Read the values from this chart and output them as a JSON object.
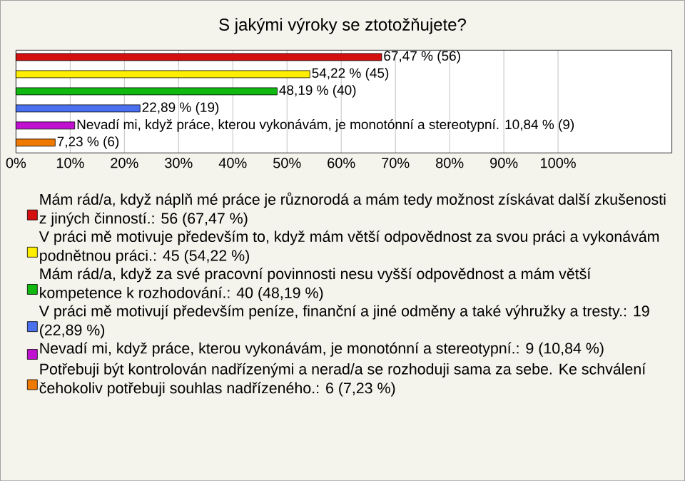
{
  "chart_data": {
    "type": "bar",
    "orientation": "horizontal",
    "title": "S jakými výroky se ztotožňujete?",
    "categories": [
      null,
      null,
      null,
      null,
      null,
      null
    ],
    "series": [
      {
        "name": "Mám rád/a, když náplň mé práce je různorodá a mám tedy možnost získávat další zkušenosti z jiných činností.: 56 (67,47 %)",
        "color": "#d41010",
        "values": [
          67.47,
          null,
          null,
          null,
          null,
          null
        ],
        "value_labels": [
          "67,47 % (56)",
          null,
          null,
          null,
          null,
          null
        ]
      },
      {
        "name": "V práci mě motivuje především to, když mám větší odpovědnost za svou práci a vykonávám podnětnou práci.: 45 (54,22 %)",
        "color": "#ffee00",
        "values": [
          null,
          54.22,
          null,
          null,
          null,
          null
        ],
        "value_labels": [
          null,
          "54,22 % (45)",
          null,
          null,
          null,
          null
        ]
      },
      {
        "name": "Mám rád/a, když za své pracovní povinnosti nesu vyšší odpovědnost a mám větší kompetence k rozhodování.: 40 (48,19 %)",
        "color": "#10b810",
        "values": [
          null,
          null,
          48.19,
          null,
          null,
          null
        ],
        "value_labels": [
          null,
          null,
          "48,19 % (40)",
          null,
          null,
          null
        ]
      },
      {
        "name": "V práci mě motivují především peníze, finanční a jiné odměny a také výhružky a tresty.: 19 (22,89 %)",
        "color": "#4a70f0",
        "values": [
          null,
          null,
          null,
          22.89,
          null,
          null
        ],
        "value_labels": [
          null,
          null,
          null,
          "22,89 % (19)",
          null,
          null
        ]
      },
      {
        "name": "Nevadí mi, když práce, kterou vykonávám, je monotónní a stereotypní.: 9 (10,84 %)",
        "color": "#c010d0",
        "values": [
          null,
          null,
          null,
          null,
          10.84,
          null
        ],
        "value_labels": [
          null,
          null,
          null,
          null,
          "Nevadí mi, když práce, kterou vykonávám, je monotónní a stereotypní. 10,84 % (9)",
          null
        ]
      },
      {
        "name": "Potřebuji být kontrolován nadřízenými a nerad/a se rozhoduji sama za sebe. Ke schválení čehokoliv potřebuji souhlas nadřízeného.: 6 (7,23 %)",
        "color": "#f07a00",
        "values": [
          null,
          null,
          null,
          null,
          null,
          7.23
        ],
        "value_labels": [
          null,
          null,
          null,
          null,
          null,
          "7,23 % (6)"
        ]
      }
    ],
    "xlim": [
      0,
      121
    ],
    "xticks": [
      {
        "value": 0,
        "label": "0%"
      },
      {
        "value": 10,
        "label": "10%"
      },
      {
        "value": 20,
        "label": "20%"
      },
      {
        "value": 30,
        "label": "30%"
      },
      {
        "value": 40,
        "label": "40%"
      },
      {
        "value": 50,
        "label": "50%"
      },
      {
        "value": 60,
        "label": "60%"
      },
      {
        "value": 70,
        "label": "70%"
      },
      {
        "value": 80,
        "label": "80%"
      },
      {
        "value": 90,
        "label": "90%"
      },
      {
        "value": 100,
        "label": "100%"
      }
    ],
    "grid": "x",
    "tick_labels": "x",
    "legend": "bottom"
  }
}
